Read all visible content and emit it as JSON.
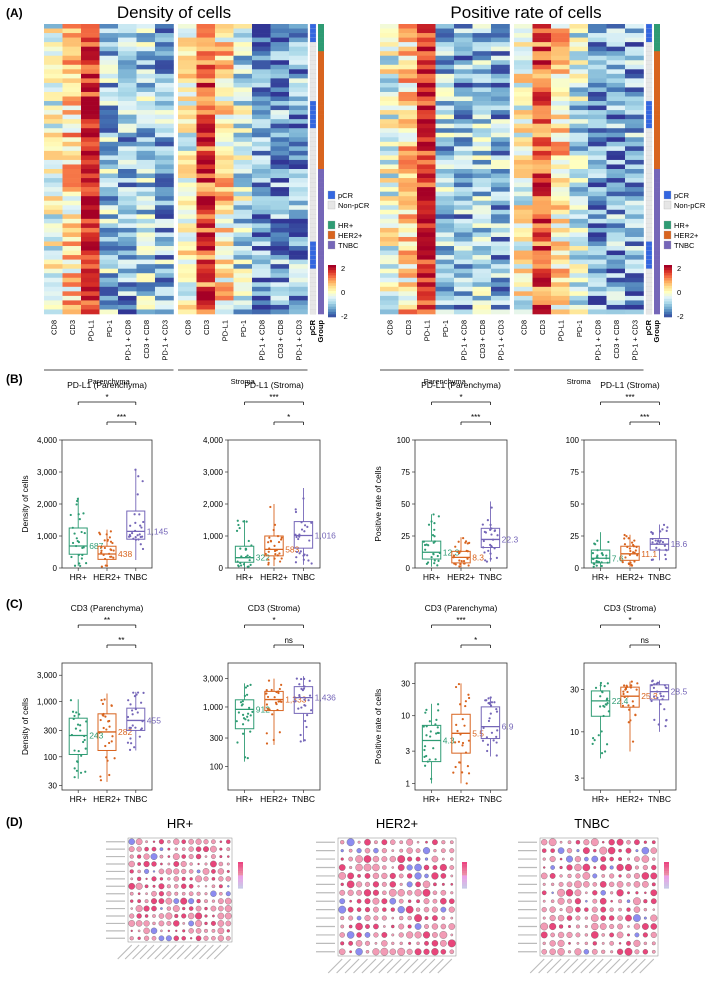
{
  "panel_labels": {
    "a": "(A)",
    "b": "(B)",
    "c": "(C)",
    "d": "(D)"
  },
  "colors": {
    "hr": "#2e9b73",
    "her2": "#d8641f",
    "tnbc": "#7566b8",
    "pcr": "#3366e0",
    "nonpcr": "#e6e6e6",
    "sig": "#111111"
  },
  "panelA": {
    "heatmaps": [
      {
        "title": "Density of cells"
      },
      {
        "title": "Positive rate of cells"
      }
    ],
    "columns": [
      "CD8",
      "CD3",
      "PD-L1",
      "PD-1",
      "PD-1 + CD8",
      "CD3 + CD8",
      "PD-1 + CD3"
    ],
    "regions": [
      "Parenchyma",
      "Stroma"
    ],
    "annotation_labels": [
      "pCR",
      "Group"
    ],
    "legend": {
      "pcr": "pCR",
      "nonpcr": "Non-pCR",
      "hr": "HR+",
      "her2": "HER2+",
      "tnbc": "TNBC",
      "scale_ticks": [
        "2",
        "0",
        "-2"
      ]
    }
  },
  "panelB": {
    "ylabel_density": "Density of cells",
    "ylabel_rate": "Positive rate of cells",
    "groups": [
      "HR+",
      "HER2+",
      "TNBC"
    ],
    "chart_data": [
      {
        "type": "box",
        "title": "PD-L1 (Parenchyma)",
        "ylabel": "Density of cells",
        "ylim": [
          0,
          4000
        ],
        "yticks": [
          "0",
          "1,000",
          "2,000",
          "3,000",
          "4,000"
        ],
        "medians": [
          687,
          438,
          1145
        ],
        "median_labels": [
          "687",
          "438",
          "1,145"
        ],
        "q1": [
          430,
          270,
          900
        ],
        "q3": [
          1250,
          680,
          1780
        ],
        "wlo": [
          60,
          40,
          250
        ],
        "whi": [
          2200,
          1200,
          3100
        ],
        "sig": [
          {
            "pair": [
              0,
              2
            ],
            "label": "*"
          },
          {
            "pair": [
              1,
              2
            ],
            "label": "***"
          }
        ]
      },
      {
        "type": "box",
        "title": "PD-L1 (Stroma)",
        "ylabel": "",
        "ylim": [
          0,
          4000
        ],
        "yticks": [
          "0",
          "1,000",
          "2,000",
          "3,000",
          "4,000"
        ],
        "medians": [
          322,
          583,
          1016
        ],
        "median_labels": [
          "322",
          "583",
          "1,016"
        ],
        "q1": [
          180,
          380,
          620
        ],
        "q3": [
          680,
          1000,
          1450
        ],
        "wlo": [
          10,
          60,
          100
        ],
        "whi": [
          1500,
          2000,
          2500
        ],
        "sig": [
          {
            "pair": [
              0,
              2
            ],
            "label": "***"
          },
          {
            "pair": [
              1,
              2
            ],
            "label": "*"
          }
        ]
      },
      {
        "type": "box",
        "title": "PD-L1 (Parenchyma)",
        "ylabel": "Positive rate of cells",
        "ylim": [
          0,
          100
        ],
        "yticks": [
          "0",
          "25",
          "50",
          "75",
          "100"
        ],
        "medians": [
          12.3,
          8.3,
          22.3
        ],
        "median_labels": [
          "12.3",
          "8.3",
          "22.3"
        ],
        "q1": [
          7,
          4,
          16
        ],
        "q3": [
          21,
          13,
          31
        ],
        "wlo": [
          1,
          0.5,
          5
        ],
        "whi": [
          42,
          24,
          52
        ],
        "sig": [
          {
            "pair": [
              0,
              2
            ],
            "label": "*"
          },
          {
            "pair": [
              1,
              2
            ],
            "label": "***"
          }
        ]
      },
      {
        "type": "box",
        "title": "PD-L1 (Stroma)",
        "ylabel": "",
        "ylim": [
          0,
          100
        ],
        "yticks": [
          "0",
          "25",
          "50",
          "75",
          "100"
        ],
        "medians": [
          7.6,
          11.1,
          18.6
        ],
        "median_labels": [
          "7.6",
          "11.1",
          "18.6"
        ],
        "q1": [
          4,
          6,
          14
        ],
        "q3": [
          14,
          17,
          23
        ],
        "wlo": [
          0.5,
          1,
          6
        ],
        "whi": [
          28,
          26,
          34
        ],
        "sig": [
          {
            "pair": [
              0,
              2
            ],
            "label": "***"
          },
          {
            "pair": [
              1,
              2
            ],
            "label": "***"
          }
        ]
      }
    ]
  },
  "panelC": {
    "chart_data": [
      {
        "type": "box",
        "scale": "log",
        "title": "CD3 (Parenchyma)",
        "ylabel": "Density of cells",
        "ylim": [
          25,
          5000
        ],
        "ticks": [
          30,
          100,
          300,
          1000,
          3000
        ],
        "yticks": [
          "30",
          "100",
          "300",
          "1,000",
          "3,000"
        ],
        "medians": [
          243,
          282,
          455
        ],
        "median_labels": [
          "243",
          "282",
          "455"
        ],
        "q1": [
          110,
          130,
          300
        ],
        "q3": [
          500,
          600,
          760
        ],
        "wlo": [
          40,
          35,
          130
        ],
        "whi": [
          1100,
          1400,
          1500
        ],
        "sig": [
          {
            "pair": [
              0,
              2
            ],
            "label": "**"
          },
          {
            "pair": [
              1,
              2
            ],
            "label": "**"
          }
        ]
      },
      {
        "type": "box",
        "scale": "log",
        "title": "CD3 (Stroma)",
        "ylabel": "",
        "ylim": [
          40,
          5500
        ],
        "ticks": [
          100,
          300,
          1000,
          3000
        ],
        "yticks": [
          "100",
          "300",
          "1,000",
          "3,000"
        ],
        "medians": [
          912,
          1333,
          1436
        ],
        "median_labels": [
          "912",
          "1,333",
          "1,436"
        ],
        "q1": [
          430,
          870,
          780
        ],
        "q3": [
          1320,
          1830,
          2200
        ],
        "wlo": [
          120,
          230,
          260
        ],
        "whi": [
          2500,
          3000,
          3300
        ],
        "sig": [
          {
            "pair": [
              0,
              2
            ],
            "label": "*"
          },
          {
            "pair": [
              1,
              2
            ],
            "label": "ns"
          }
        ]
      },
      {
        "type": "box",
        "scale": "log",
        "title": "CD3 (Parenchyma)",
        "ylabel": "Positive rate of cells",
        "ylim": [
          0.8,
          60
        ],
        "ticks": [
          1,
          3,
          10,
          30
        ],
        "yticks": [
          "1",
          "3",
          "10",
          "30"
        ],
        "medians": [
          4.3,
          5.5,
          6.9
        ],
        "median_labels": [
          "4.3",
          "5.5",
          "6.9"
        ],
        "q1": [
          2.1,
          2.8,
          4.6
        ],
        "q3": [
          7.2,
          10.5,
          13.5
        ],
        "wlo": [
          1,
          1,
          2.5
        ],
        "whi": [
          15,
          30,
          19
        ],
        "sig": [
          {
            "pair": [
              0,
              2
            ],
            "label": "***"
          },
          {
            "pair": [
              1,
              2
            ],
            "label": "*"
          }
        ]
      },
      {
        "type": "box",
        "scale": "log",
        "title": "CD3 (Stroma)",
        "ylabel": "",
        "ylim": [
          2.2,
          60
        ],
        "ticks": [
          3,
          10,
          30
        ],
        "yticks": [
          "3",
          "10",
          "30"
        ],
        "medians": [
          22.4,
          25.3,
          28.5
        ],
        "median_labels": [
          "22.4",
          "25.3",
          "28.5"
        ],
        "q1": [
          15,
          19,
          23
        ],
        "q3": [
          29,
          32,
          34
        ],
        "wlo": [
          5,
          6,
          10
        ],
        "whi": [
          36,
          37,
          38
        ],
        "sig": [
          {
            "pair": [
              0,
              2
            ],
            "label": "*"
          },
          {
            "pair": [
              1,
              2
            ],
            "label": "ns"
          }
        ]
      }
    ]
  },
  "panelD": {
    "plots": [
      {
        "title": "HR+"
      },
      {
        "title": "HER2+"
      },
      {
        "title": "TNBC"
      }
    ]
  }
}
